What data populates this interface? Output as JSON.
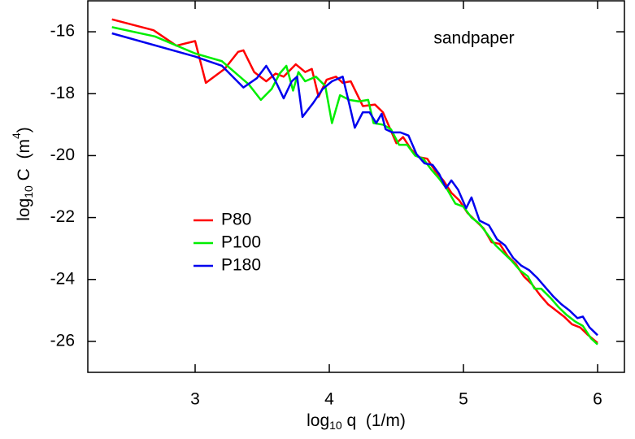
{
  "chart_data": {
    "type": "line",
    "annotation": "sandpaper",
    "x_label": {
      "base": "log",
      "sub": "10",
      "rest": " q  (1/m)"
    },
    "y_label": {
      "base": "log",
      "sub": "10",
      "rest": " C  (m",
      "sup": "4",
      "end": ")"
    },
    "xlim": [
      2.2,
      6.2
    ],
    "ylim": [
      -27,
      -15
    ],
    "xticks": [
      3,
      4,
      5,
      6
    ],
    "yticks": [
      -16,
      -18,
      -20,
      -22,
      -24,
      -26
    ],
    "legend": "center-left",
    "series": [
      {
        "name": "P80",
        "color": "#ff0000",
        "x": [
          2.38,
          2.69,
          2.86,
          3.0,
          3.08,
          3.22,
          3.32,
          3.36,
          3.44,
          3.53,
          3.6,
          3.66,
          3.75,
          3.82,
          3.87,
          3.92,
          3.98,
          4.05,
          4.1,
          4.16,
          4.25,
          4.34,
          4.4,
          4.45,
          4.5,
          4.55,
          4.61,
          4.67,
          4.73,
          4.79,
          4.85,
          4.91,
          4.97,
          5.03,
          5.09,
          5.15,
          5.21,
          5.27,
          5.33,
          5.39,
          5.45,
          5.51,
          5.57,
          5.63,
          5.69,
          5.75,
          5.81,
          5.87,
          5.93,
          6.0
        ],
        "values": [
          -15.6,
          -15.95,
          -16.45,
          -16.3,
          -17.65,
          -17.2,
          -16.65,
          -16.6,
          -17.3,
          -17.6,
          -17.35,
          -17.45,
          -17.05,
          -17.3,
          -17.2,
          -18.1,
          -17.55,
          -17.45,
          -17.65,
          -17.6,
          -18.4,
          -18.35,
          -18.6,
          -19.1,
          -19.6,
          -19.4,
          -19.8,
          -20.05,
          -20.1,
          -20.5,
          -20.8,
          -21.2,
          -21.45,
          -21.85,
          -22.1,
          -22.35,
          -22.8,
          -22.85,
          -23.25,
          -23.5,
          -23.9,
          -24.15,
          -24.5,
          -24.8,
          -25.0,
          -25.2,
          -25.45,
          -25.55,
          -25.8,
          -26.05
        ]
      },
      {
        "name": "P100",
        "color": "#00ee00",
        "x": [
          2.38,
          2.7,
          3.0,
          3.2,
          3.32,
          3.4,
          3.49,
          3.57,
          3.63,
          3.68,
          3.73,
          3.77,
          3.82,
          3.9,
          3.97,
          4.02,
          4.08,
          4.15,
          4.22,
          4.29,
          4.33,
          4.4,
          4.46,
          4.52,
          4.58,
          4.64,
          4.7,
          4.76,
          4.82,
          4.88,
          4.94,
          5.0,
          5.06,
          5.12,
          5.18,
          5.24,
          5.3,
          5.36,
          5.42,
          5.48,
          5.53,
          5.58,
          5.65,
          5.71,
          5.77,
          5.83,
          5.89,
          5.95,
          6.0
        ],
        "values": [
          -15.85,
          -16.15,
          -16.7,
          -16.95,
          -17.4,
          -17.7,
          -18.2,
          -17.85,
          -17.35,
          -17.1,
          -17.9,
          -17.3,
          -17.6,
          -17.45,
          -17.75,
          -18.95,
          -18.05,
          -18.2,
          -18.25,
          -18.2,
          -18.95,
          -19.0,
          -19.15,
          -19.65,
          -19.65,
          -20.0,
          -20.1,
          -20.45,
          -20.75,
          -21.1,
          -21.55,
          -21.65,
          -22.0,
          -22.2,
          -22.55,
          -22.9,
          -23.15,
          -23.4,
          -23.7,
          -23.9,
          -24.3,
          -24.3,
          -24.6,
          -24.9,
          -25.15,
          -25.35,
          -25.5,
          -25.9,
          -26.1
        ]
      },
      {
        "name": "P180",
        "color": "#0000ee",
        "x": [
          2.38,
          3.0,
          3.2,
          3.36,
          3.46,
          3.53,
          3.6,
          3.66,
          3.72,
          3.76,
          3.8,
          3.88,
          3.95,
          4.02,
          4.1,
          4.15,
          4.19,
          4.25,
          4.3,
          4.35,
          4.39,
          4.42,
          4.47,
          4.53,
          4.59,
          4.65,
          4.71,
          4.77,
          4.82,
          4.87,
          4.91,
          4.96,
          5.02,
          5.06,
          5.12,
          5.19,
          5.25,
          5.31,
          5.37,
          5.43,
          5.49,
          5.55,
          5.61,
          5.67,
          5.73,
          5.79,
          5.85,
          5.89,
          5.94,
          6.0
        ],
        "values": [
          -16.05,
          -16.8,
          -17.1,
          -17.8,
          -17.5,
          -17.1,
          -17.6,
          -18.15,
          -17.6,
          -17.45,
          -18.75,
          -18.3,
          -17.85,
          -17.6,
          -17.45,
          -18.35,
          -19.1,
          -18.6,
          -18.6,
          -18.95,
          -18.65,
          -19.15,
          -19.25,
          -19.25,
          -19.35,
          -19.95,
          -20.25,
          -20.3,
          -20.6,
          -21.05,
          -20.8,
          -21.1,
          -21.7,
          -21.35,
          -22.1,
          -22.25,
          -22.7,
          -22.9,
          -23.3,
          -23.55,
          -23.7,
          -23.95,
          -24.25,
          -24.55,
          -24.8,
          -25.0,
          -25.25,
          -25.2,
          -25.55,
          -25.8
        ]
      }
    ]
  }
}
